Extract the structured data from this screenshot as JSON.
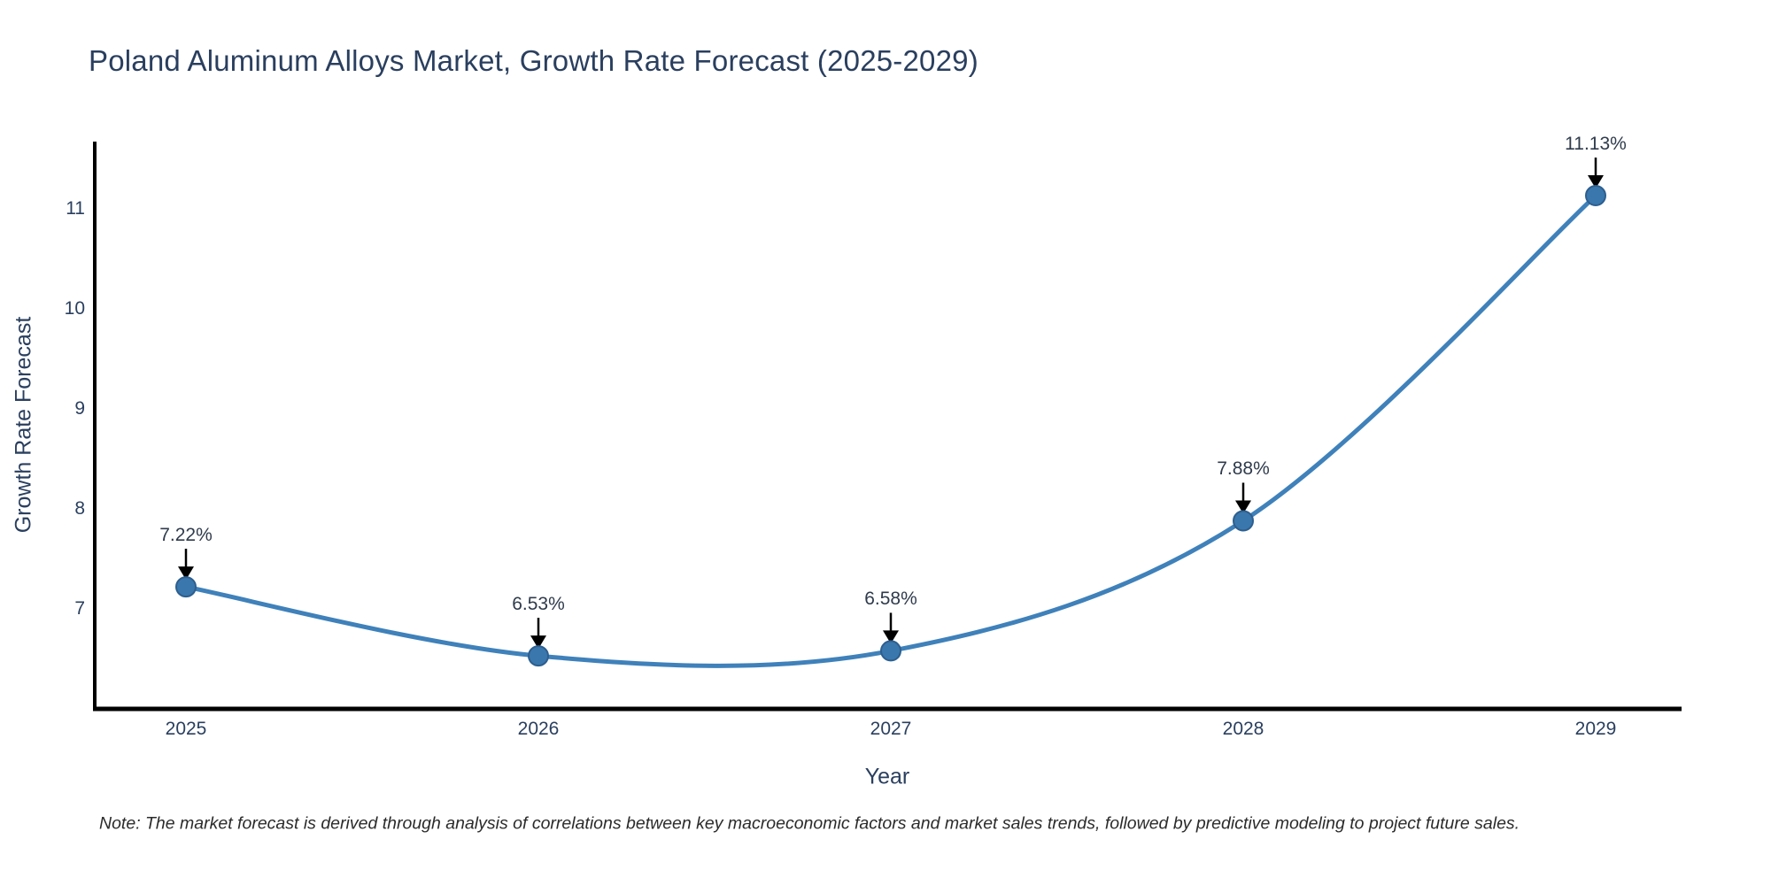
{
  "title": "Poland Aluminum Alloys Market, Growth Rate Forecast (2025-2029)",
  "note": "Note: The market forecast is derived through analysis of correlations between key macroeconomic factors and market sales trends, followed by predictive modeling to project future sales.",
  "chart_data": {
    "type": "line",
    "title": "Poland Aluminum Alloys Market, Growth Rate Forecast (2025-2029)",
    "xlabel": "Year",
    "ylabel": "Growth Rate Forecast",
    "categories": [
      "2025",
      "2026",
      "2027",
      "2028",
      "2029"
    ],
    "series": [
      {
        "name": "Growth Rate Forecast",
        "values": [
          7.22,
          6.53,
          6.58,
          7.88,
          11.13
        ],
        "point_labels": [
          "7.22%",
          "6.53%",
          "6.58%",
          "7.88%",
          "11.13%"
        ]
      }
    ],
    "line_shape": "spline",
    "markers": true,
    "grid": false,
    "legend_position": "none",
    "yticks": [
      7,
      8,
      9,
      10,
      11
    ],
    "ylim": [
      6.0,
      11.67
    ],
    "colors": {
      "line": "#3f81ba",
      "marker_fill": "#3a77ad",
      "marker_edge": "#2d5f8f",
      "axis_line": "#000000",
      "arrow": "#000000",
      "tick_text": "#2a3f5f",
      "annotation_text": "#2f3b4c",
      "title_text": "#2a3f5f",
      "background": "#ffffff"
    }
  }
}
